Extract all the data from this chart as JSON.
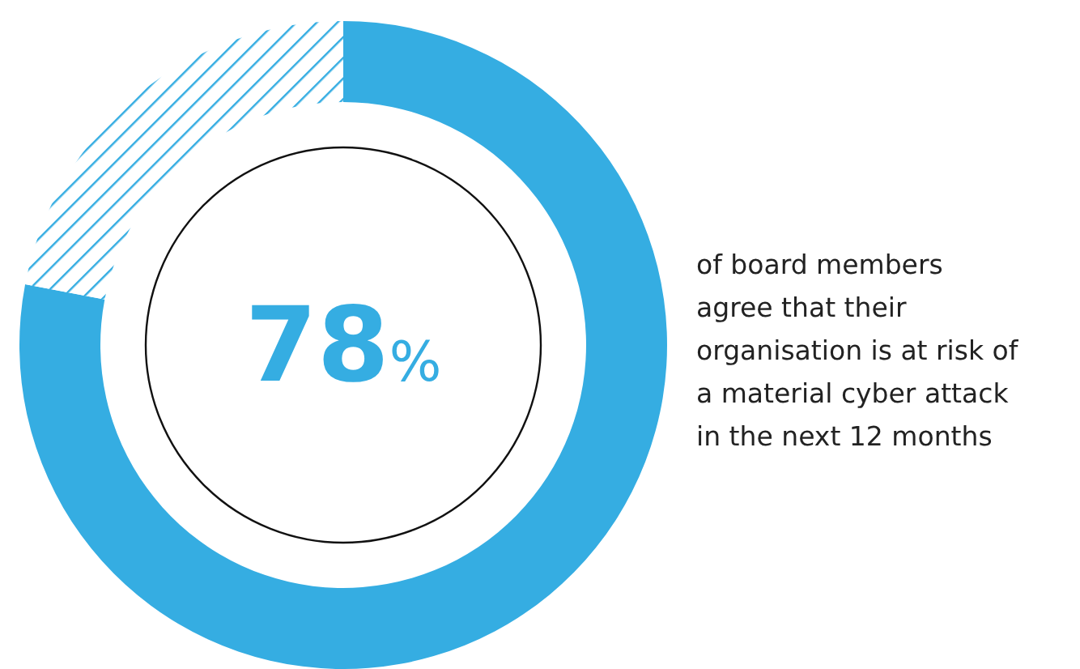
{
  "chart_data": {
    "type": "donut",
    "categories": [
      null,
      null
    ],
    "values": [
      78,
      22
    ],
    "colors": [
      "#35ade2",
      "#35ade2"
    ],
    "value_labels": [
      "78%",
      null
    ],
    "annotations": [
      "of board members\nagree that their\norganisation is at risk of\na material cyber attack\nin the next 12 months"
    ]
  }
}
